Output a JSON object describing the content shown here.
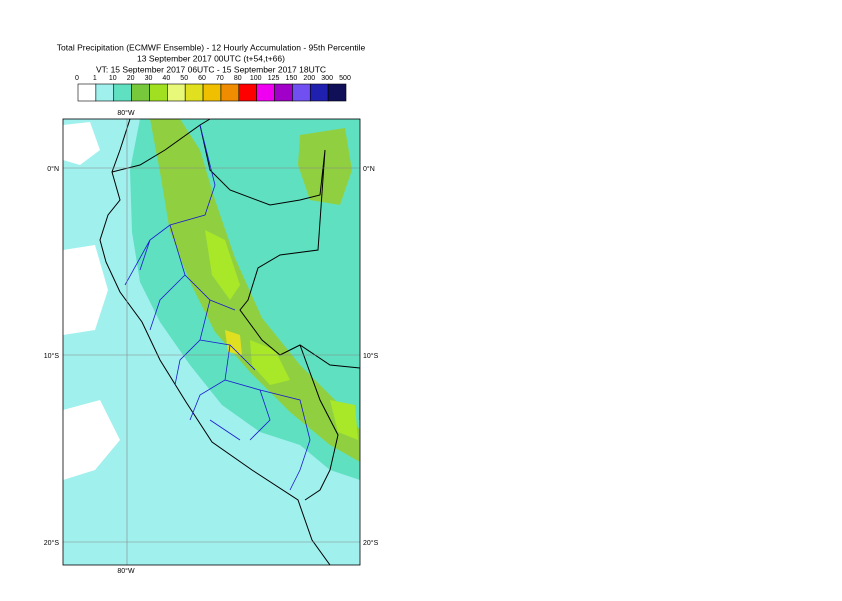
{
  "header": {
    "title": "Total Precipitation (ECMWF Ensemble) - 12 Hourly Accumulation - 95th Percentile",
    "subtitle": "13 September 2017 00UTC (t+54,t+66)",
    "valid_time": "VT: 15 September 2017 06UTC - 15 September 2017 18UTC"
  },
  "legend": {
    "labels": [
      "0",
      "1",
      "10",
      "20",
      "30",
      "40",
      "50",
      "60",
      "70",
      "80",
      "100",
      "125",
      "150",
      "200",
      "300",
      "500"
    ],
    "colors": [
      "#ffffff",
      "#a0f0ee",
      "#5fe0c0",
      "#78c83c",
      "#a0e020",
      "#e8f878",
      "#e0e020",
      "#f0c000",
      "#f08c00",
      "#ff0000",
      "#f000f0",
      "#a000c8",
      "#7050f0",
      "#2020b0",
      "#101058"
    ]
  },
  "map": {
    "lon_labels": [
      "80°W"
    ],
    "lat_labels": [
      "0°N",
      "10°S",
      "20°S"
    ]
  }
}
